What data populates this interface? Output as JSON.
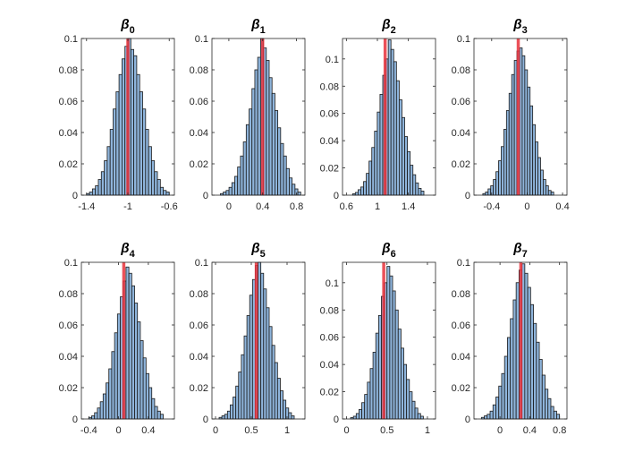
{
  "figure": {
    "background": "#ffffff",
    "bar_fill": "#8fb5dc",
    "bar_edge": "#1a1a1a",
    "line_color": "#e8333c",
    "axis_color": "#262626"
  },
  "chart_data": [
    {
      "type": "bar",
      "title": "β",
      "subscript": "0",
      "xlim": [
        -1.45,
        -0.55
      ],
      "ylim": [
        0,
        0.1
      ],
      "xticks": [
        -1.4,
        -1,
        -0.6
      ],
      "xtick_labels": [
        "-1.4",
        "-1",
        "-0.6"
      ],
      "yticks": [
        0,
        0.02,
        0.04,
        0.06,
        0.08,
        0.1
      ],
      "ytick_labels": [
        "0",
        "0.02",
        "0.04",
        "0.06",
        "0.08",
        "0.1"
      ],
      "bins_range": [
        -1.4,
        -0.6
      ],
      "values": [
        0.001,
        0.002,
        0.004,
        0.006,
        0.01,
        0.015,
        0.022,
        0.031,
        0.042,
        0.055,
        0.066,
        0.077,
        0.087,
        0.095,
        0.1,
        0.093,
        0.089,
        0.077,
        0.066,
        0.055,
        0.042,
        0.031,
        0.022,
        0.015,
        0.01,
        0.005,
        0.003,
        0.002
      ],
      "line_x": -1.0
    },
    {
      "type": "bar",
      "title": "β",
      "subscript": "1",
      "xlim": [
        -0.2,
        0.9
      ],
      "ylim": [
        0,
        0.1
      ],
      "xticks": [
        0,
        0.4,
        0.8
      ],
      "xtick_labels": [
        "0",
        "0.4",
        "0.8"
      ],
      "yticks": [
        0,
        0.02,
        0.04,
        0.06,
        0.08,
        0.1
      ],
      "ytick_labels": [
        "0",
        "0.02",
        "0.04",
        "0.06",
        "0.08",
        "0.1"
      ],
      "bins_range": [
        -0.1,
        0.85
      ],
      "values": [
        0.001,
        0.002,
        0.003,
        0.005,
        0.008,
        0.012,
        0.018,
        0.025,
        0.034,
        0.045,
        0.055,
        0.068,
        0.08,
        0.088,
        0.1,
        0.094,
        0.086,
        0.075,
        0.065,
        0.054,
        0.043,
        0.033,
        0.025,
        0.017,
        0.011,
        0.007,
        0.004,
        0.002
      ],
      "line_x": 0.4
    },
    {
      "type": "bar",
      "title": "β",
      "subscript": "2",
      "xlim": [
        0.55,
        1.75
      ],
      "ylim": [
        0,
        0.115
      ],
      "xticks": [
        0.6,
        1,
        1.4
      ],
      "xtick_labels": [
        "0.6",
        "1",
        "1.4"
      ],
      "yticks": [
        0,
        0.02,
        0.04,
        0.06,
        0.08,
        0.1
      ],
      "ytick_labels": [
        "0",
        "0.02",
        "0.04",
        "0.06",
        "0.08",
        "0.1"
      ],
      "bins_range": [
        0.68,
        1.6
      ],
      "values": [
        0.001,
        0.002,
        0.004,
        0.006,
        0.01,
        0.016,
        0.025,
        0.035,
        0.047,
        0.061,
        0.074,
        0.088,
        0.1,
        0.114,
        0.107,
        0.098,
        0.084,
        0.07,
        0.057,
        0.043,
        0.032,
        0.022,
        0.015,
        0.009,
        0.005,
        0.003
      ],
      "line_x": 1.1
    },
    {
      "type": "bar",
      "title": "β",
      "subscript": "3",
      "xlim": [
        -0.6,
        0.45
      ],
      "ylim": [
        0,
        0.1
      ],
      "xticks": [
        -0.4,
        0,
        0.4
      ],
      "xtick_labels": [
        "-0.4",
        "0",
        "0.4"
      ],
      "yticks": [
        0,
        0.02,
        0.04,
        0.06,
        0.08,
        0.1
      ],
      "ytick_labels": [
        "0",
        "0.02",
        "0.04",
        "0.06",
        "0.08",
        "0.1"
      ],
      "bins_range": [
        -0.5,
        0.3
      ],
      "values": [
        0.001,
        0.002,
        0.004,
        0.006,
        0.01,
        0.015,
        0.022,
        0.031,
        0.042,
        0.054,
        0.065,
        0.077,
        0.086,
        0.092,
        0.094,
        0.089,
        0.08,
        0.069,
        0.057,
        0.045,
        0.034,
        0.024,
        0.016,
        0.01,
        0.006,
        0.003,
        0.002
      ],
      "line_x": -0.1
    },
    {
      "type": "bar",
      "title": "β",
      "subscript": "4",
      "xlim": [
        -0.5,
        0.75
      ],
      "ylim": [
        0,
        0.1
      ],
      "xticks": [
        -0.4,
        0,
        0.4
      ],
      "xtick_labels": [
        "-0.4",
        "0",
        "0.4"
      ],
      "yticks": [
        0,
        0.02,
        0.04,
        0.06,
        0.08,
        0.1
      ],
      "ytick_labels": [
        "0",
        "0.02",
        "0.04",
        "0.06",
        "0.08",
        "0.1"
      ],
      "bins_range": [
        -0.4,
        0.6
      ],
      "values": [
        0.001,
        0.002,
        0.004,
        0.007,
        0.011,
        0.016,
        0.023,
        0.032,
        0.043,
        0.055,
        0.067,
        0.078,
        0.088,
        0.097,
        0.093,
        0.085,
        0.074,
        0.062,
        0.05,
        0.039,
        0.029,
        0.02,
        0.013,
        0.008,
        0.005,
        0.003
      ],
      "line_x": 0.07
    },
    {
      "type": "bar",
      "title": "β",
      "subscript": "5",
      "xlim": [
        -0.05,
        1.25
      ],
      "ylim": [
        0,
        0.1
      ],
      "xticks": [
        0,
        0.5,
        1
      ],
      "xtick_labels": [
        "0",
        "0.5",
        "1"
      ],
      "yticks": [
        0,
        0.02,
        0.04,
        0.06,
        0.08,
        0.1
      ],
      "ytick_labels": [
        "0",
        "0.02",
        "0.04",
        "0.06",
        "0.08",
        "0.1"
      ],
      "bins_range": [
        0.05,
        1.1
      ],
      "values": [
        0.001,
        0.002,
        0.003,
        0.005,
        0.009,
        0.014,
        0.021,
        0.03,
        0.041,
        0.053,
        0.066,
        0.079,
        0.089,
        0.098,
        0.1,
        0.093,
        0.083,
        0.071,
        0.059,
        0.047,
        0.036,
        0.026,
        0.018,
        0.012,
        0.007,
        0.004,
        0.002
      ],
      "line_x": 0.57
    },
    {
      "type": "bar",
      "title": "β",
      "subscript": "6",
      "xlim": [
        -0.05,
        1.1
      ],
      "ylim": [
        0,
        0.115
      ],
      "xticks": [
        0,
        0.5,
        1
      ],
      "xtick_labels": [
        "0",
        "0.5",
        "1"
      ],
      "yticks": [
        0,
        0.02,
        0.04,
        0.06,
        0.08,
        0.1
      ],
      "ytick_labels": [
        "0",
        "0.02",
        "0.04",
        "0.06",
        "0.08",
        "0.1"
      ],
      "bins_range": [
        0.05,
        0.95
      ],
      "values": [
        0.001,
        0.002,
        0.004,
        0.007,
        0.012,
        0.018,
        0.027,
        0.037,
        0.049,
        0.063,
        0.076,
        0.09,
        0.1,
        0.112,
        0.105,
        0.094,
        0.08,
        0.066,
        0.052,
        0.04,
        0.029,
        0.02,
        0.013,
        0.008,
        0.004,
        0.002
      ],
      "line_x": 0.46
    },
    {
      "type": "bar",
      "title": "β",
      "subscript": "7",
      "xlim": [
        -0.35,
        0.9
      ],
      "ylim": [
        0,
        0.1
      ],
      "xticks": [
        0,
        0.4,
        0.8
      ],
      "xtick_labels": [
        "0",
        "0.4",
        "0.8"
      ],
      "yticks": [
        0,
        0.02,
        0.04,
        0.06,
        0.08,
        0.1
      ],
      "ytick_labels": [
        "0",
        "0.02",
        "0.04",
        "0.06",
        "0.08",
        "0.1"
      ],
      "bins_range": [
        -0.25,
        0.8
      ],
      "values": [
        0.001,
        0.002,
        0.003,
        0.005,
        0.009,
        0.014,
        0.021,
        0.029,
        0.04,
        0.052,
        0.064,
        0.076,
        0.087,
        0.095,
        0.099,
        0.093,
        0.084,
        0.073,
        0.061,
        0.049,
        0.038,
        0.028,
        0.019,
        0.013,
        0.008,
        0.005,
        0.003
      ],
      "line_x": 0.28
    }
  ]
}
